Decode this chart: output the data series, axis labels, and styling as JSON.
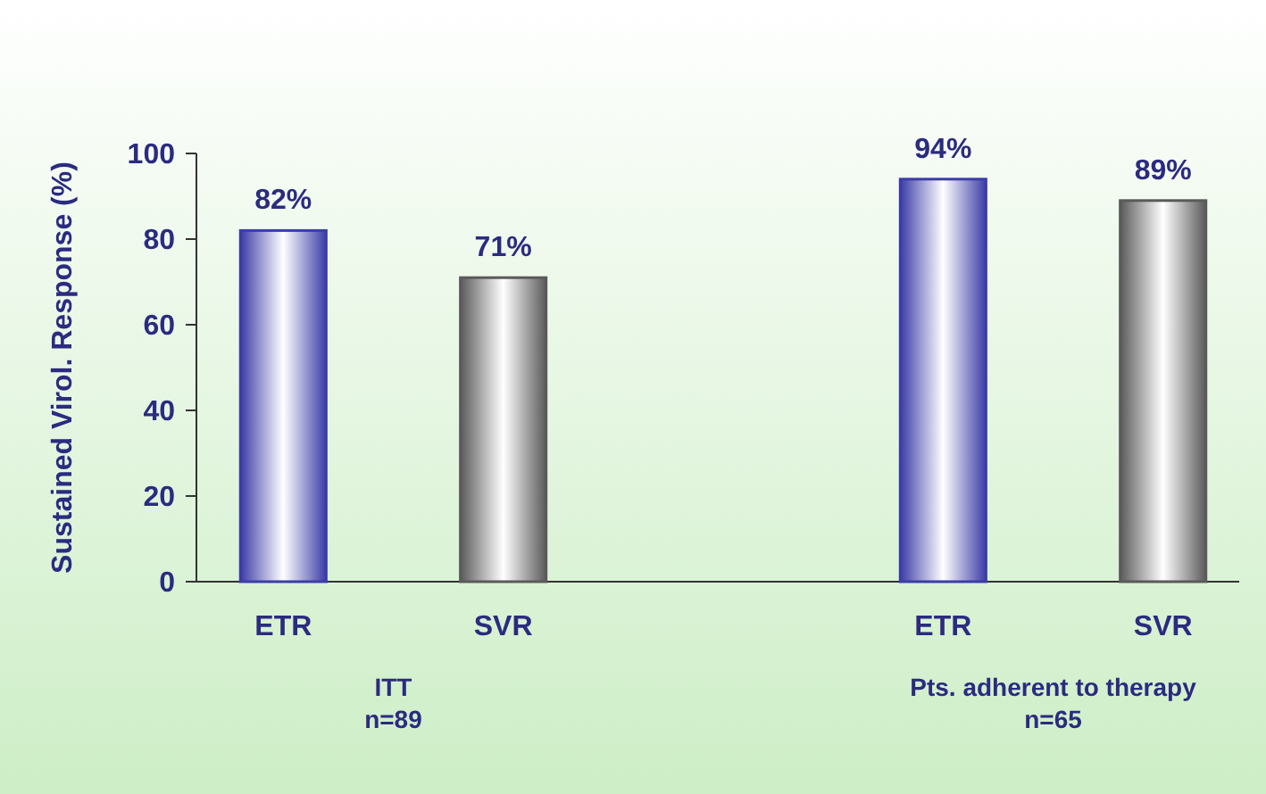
{
  "chart_data": {
    "type": "bar",
    "ylabel": "Sustained Virol. Response (%)",
    "categories": [
      "ETR",
      "SVR",
      null,
      "ETR",
      "SVR"
    ],
    "values": [
      82,
      71,
      null,
      94,
      89
    ],
    "colors": [
      "#3c3ca8",
      "#5a5a5a",
      null,
      "#3c3ca8",
      "#5a5a5a"
    ],
    "value_labels": [
      "82%",
      "71%",
      null,
      "94%",
      "89%"
    ],
    "ylim": [
      0,
      100
    ],
    "yticks": [
      0,
      20,
      40,
      60,
      80,
      100
    ],
    "annotations": [
      "ITT",
      "n=89",
      "Pts. adherent to therapy",
      "n=65"
    ]
  }
}
